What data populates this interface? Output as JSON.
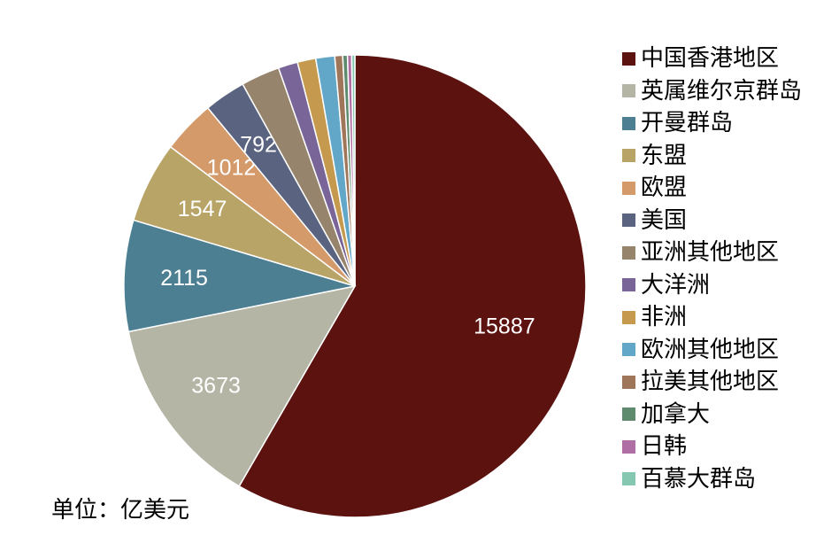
{
  "chart_data": {
    "type": "pie",
    "unit_label": "单位：亿美元",
    "slices": [
      {
        "label": "中国香港地区",
        "value": 15887,
        "color": "#5c1310",
        "show_label": true
      },
      {
        "label": "英属维尔京群岛",
        "value": 3673,
        "color": "#b5b5a6",
        "show_label": true
      },
      {
        "label": "开曼群岛",
        "value": 2115,
        "color": "#4c7f92",
        "show_label": true
      },
      {
        "label": "东盟",
        "value": 1547,
        "color": "#b9a468",
        "show_label": true
      },
      {
        "label": "欧盟",
        "value": 1012,
        "color": "#d49a6a",
        "show_label": true
      },
      {
        "label": "美国",
        "value": 792,
        "color": "#5a6480",
        "show_label": true
      },
      {
        "label": "亚洲其他地区",
        "value": 740,
        "color": "#96846c",
        "show_label": false
      },
      {
        "label": "大洋洲",
        "value": 370,
        "color": "#7a6598",
        "show_label": false
      },
      {
        "label": "非洲",
        "value": 350,
        "color": "#c59a4e",
        "show_label": false
      },
      {
        "label": "欧洲其他地区",
        "value": 360,
        "color": "#62a6c8",
        "show_label": false
      },
      {
        "label": "拉美其他地区",
        "value": 150,
        "color": "#a0765a",
        "show_label": false
      },
      {
        "label": "加拿大",
        "value": 90,
        "color": "#5e8a6d",
        "show_label": false
      },
      {
        "label": "日韩",
        "value": 80,
        "color": "#b06fa4",
        "show_label": false
      },
      {
        "label": "百慕大群岛",
        "value": 60,
        "color": "#86c7b2",
        "show_label": false
      }
    ]
  }
}
